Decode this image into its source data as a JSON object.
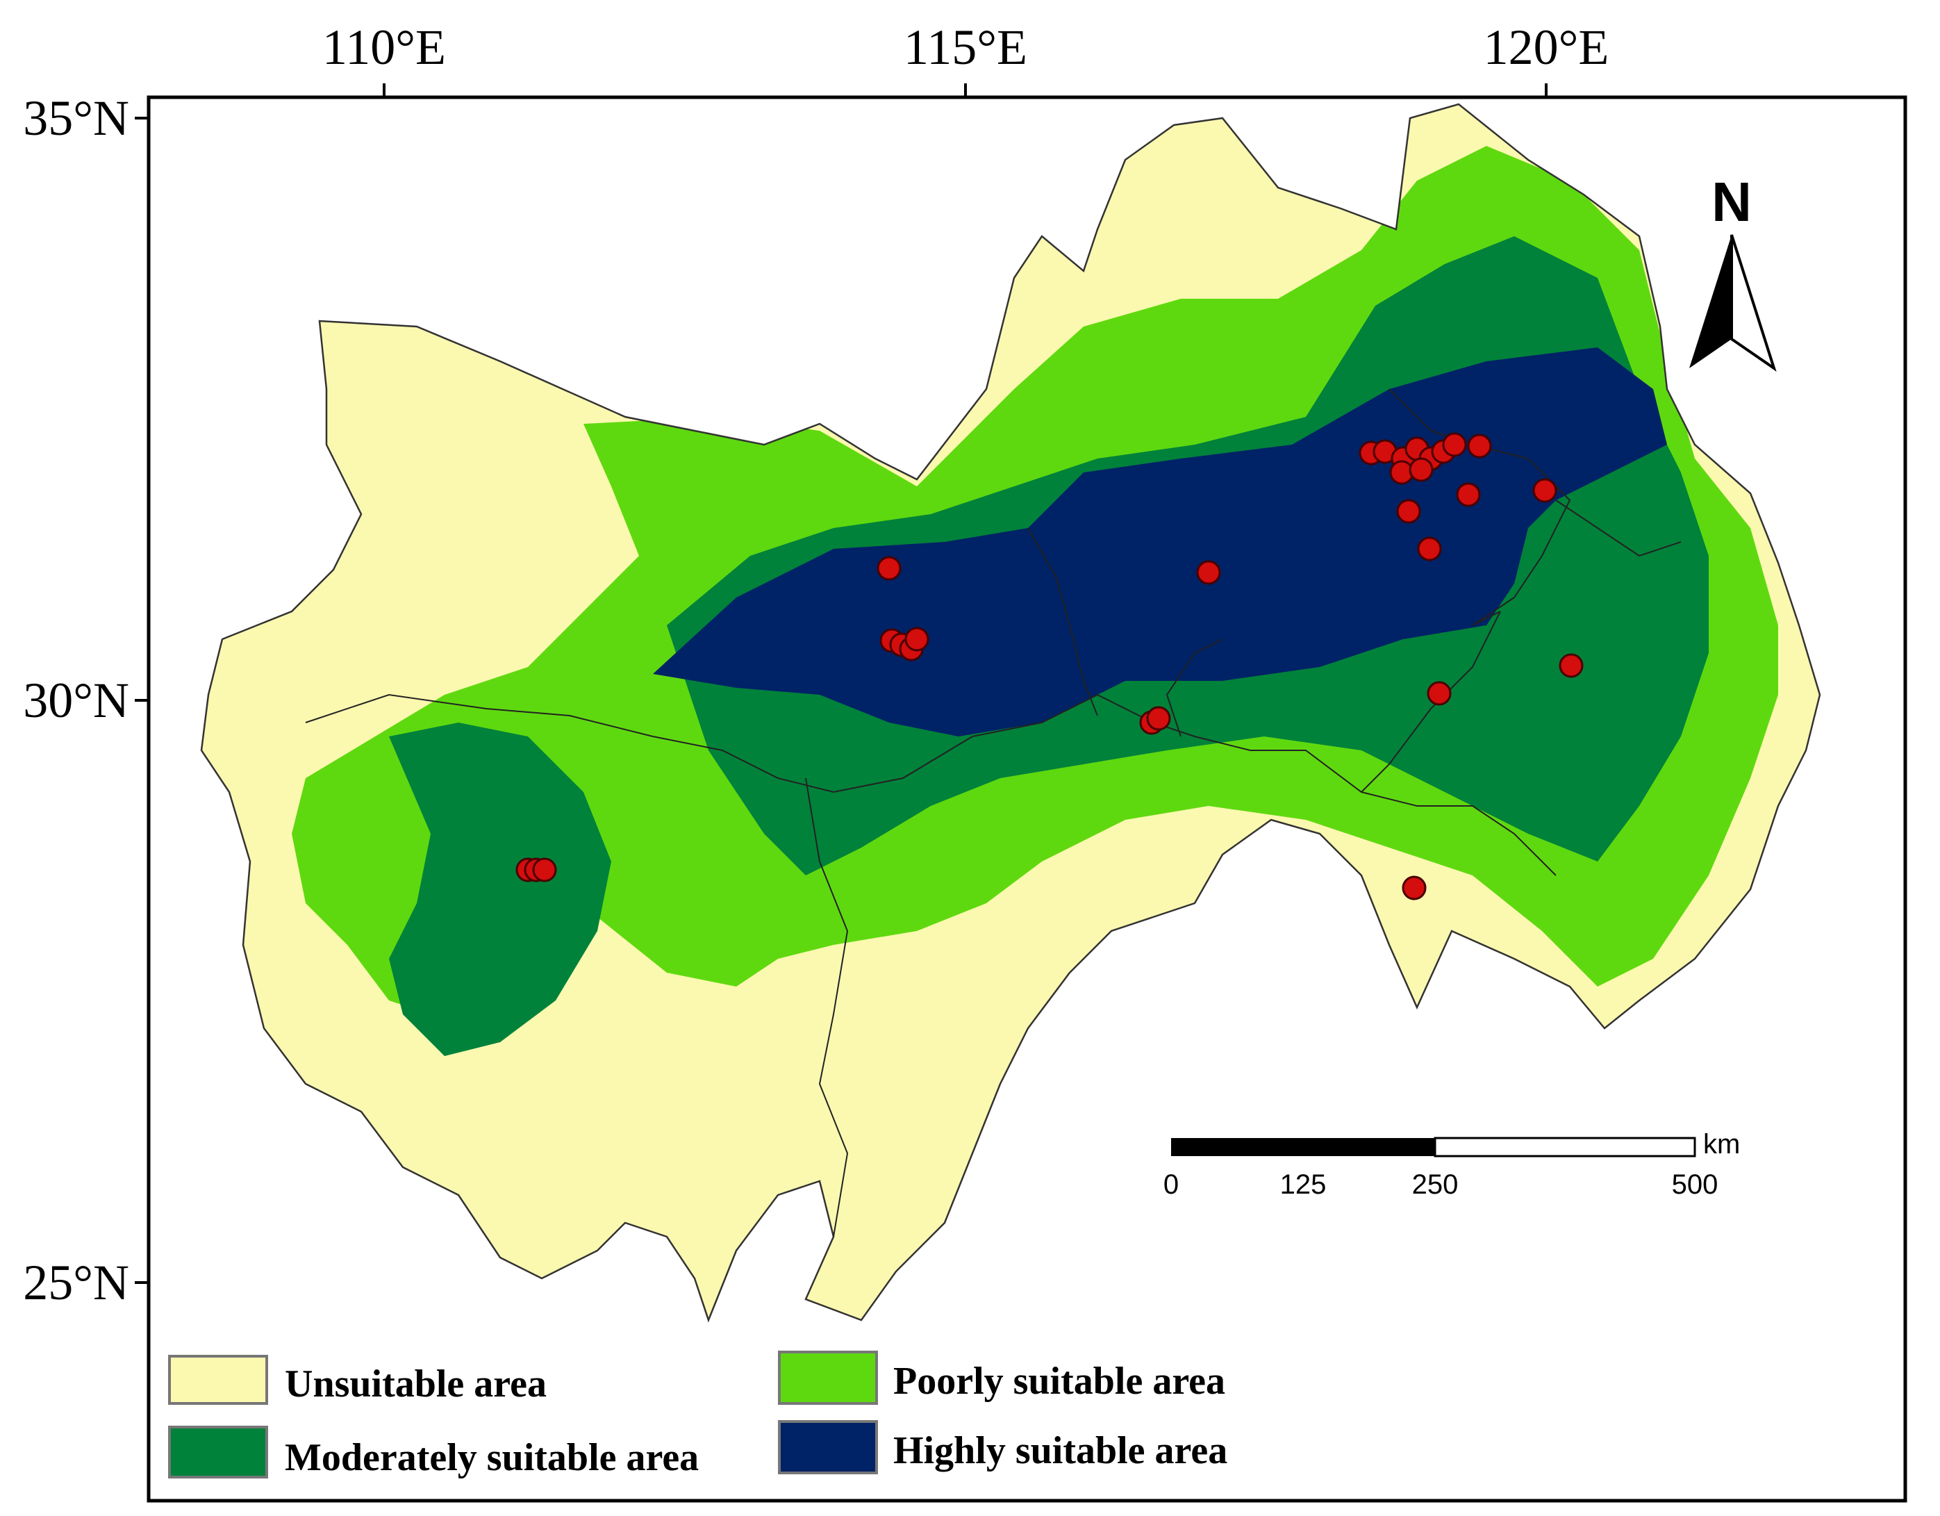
{
  "map": {
    "axes": {
      "longitude_labels": [
        "110°E",
        "115°E",
        "120°E"
      ],
      "latitude_labels": [
        "35°N",
        "30°N",
        "25°N"
      ]
    },
    "north_arrow": {
      "label": "N"
    },
    "scale_bar": {
      "unit": "km",
      "ticks": [
        "0",
        "125",
        "250",
        "500"
      ]
    },
    "legend": [
      {
        "key": "unsuitable",
        "label": "Unsuitable area",
        "color": "#fbf8b0"
      },
      {
        "key": "moderate",
        "label": "Moderately suitable area",
        "color": "#00823a"
      },
      {
        "key": "poor",
        "label": "Poorly suitable area",
        "color": "#5fd90f"
      },
      {
        "key": "high",
        "label": "Highly suitable area",
        "color": "#002266"
      }
    ],
    "occurrence_color": "#d40d0d",
    "zone_colors": {
      "unsuitable": "#fbf8b0",
      "poor": "#5fd90f",
      "moderate": "#00823a",
      "high": "#002266"
    }
  }
}
